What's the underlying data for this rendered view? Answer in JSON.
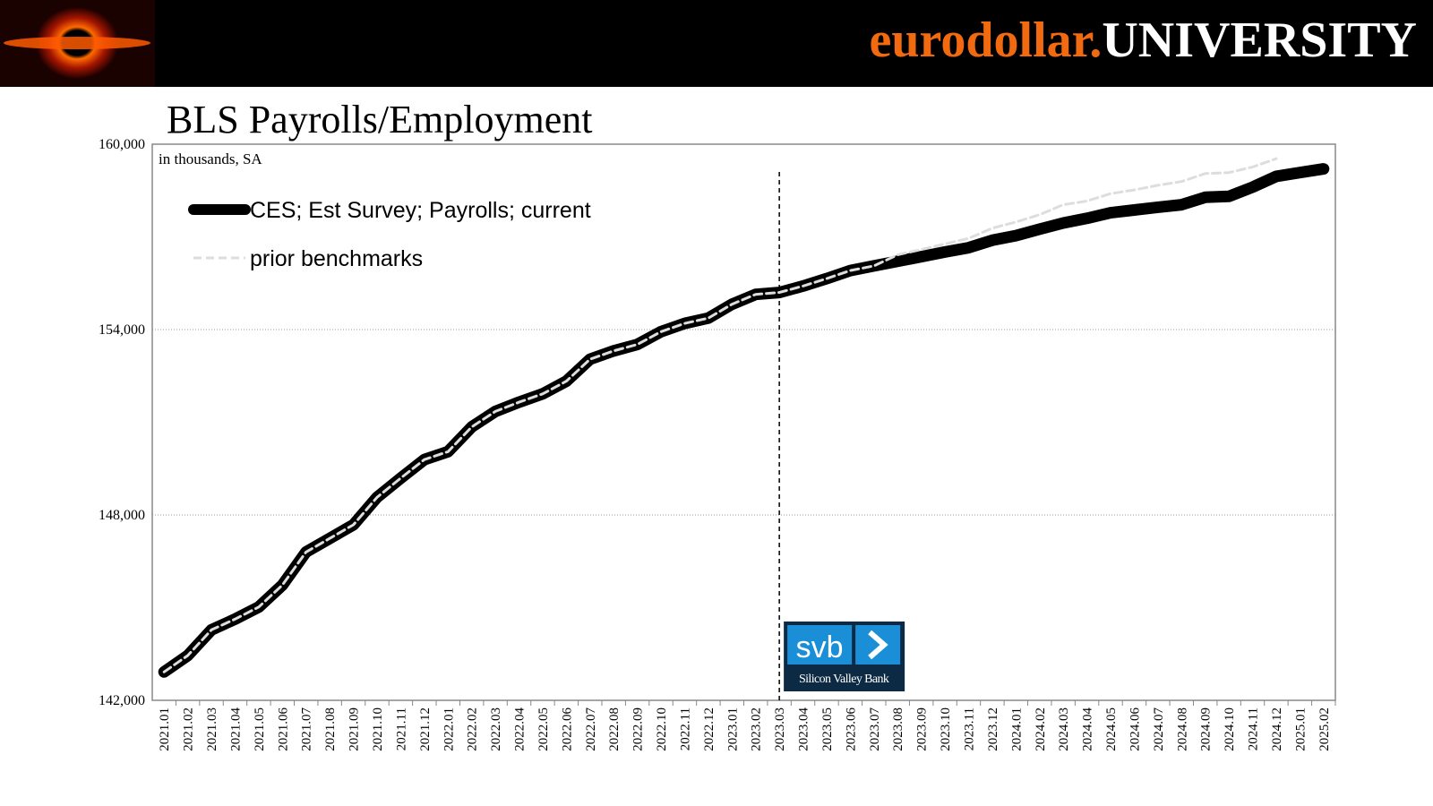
{
  "header": {
    "brand": "eurodollar.",
    "brand_suffix": "UNIVERSITY"
  },
  "chart_data": {
    "type": "line",
    "title": "BLS Payrolls/Employment",
    "subtitle": "in thousands, SA",
    "categories": [
      "2021.01",
      "2021.02",
      "2021.03",
      "2021.04",
      "2021.05",
      "2021.06",
      "2021.07",
      "2021.08",
      "2021.09",
      "2021.10",
      "2021.11",
      "2021.12",
      "2022.01",
      "2022.02",
      "2022.03",
      "2022.04",
      "2022.05",
      "2022.06",
      "2022.07",
      "2022.08",
      "2022.09",
      "2022.10",
      "2022.11",
      "2022.12",
      "2023.01",
      "2023.02",
      "2023.03",
      "2023.04",
      "2023.05",
      "2023.06",
      "2023.07",
      "2023.08",
      "2023.09",
      "2023.10",
      "2023.11",
      "2023.12",
      "2024.01",
      "2024.02",
      "2024.03",
      "2024.04",
      "2024.05",
      "2024.06",
      "2024.07",
      "2024.08",
      "2024.09",
      "2024.10",
      "2024.11",
      "2024.12",
      "2025.01",
      "2025.02"
    ],
    "series": [
      {
        "name": "CES; Est Survey; Payrolls; current",
        "color": "#000000",
        "style": "solid",
        "values": [
          142920,
          143450,
          144280,
          144630,
          145020,
          145730,
          146800,
          147240,
          147680,
          148570,
          149190,
          149790,
          150050,
          150850,
          151350,
          151650,
          151920,
          152330,
          153040,
          153310,
          153520,
          153930,
          154200,
          154370,
          154820,
          155140,
          155200,
          155410,
          155650,
          155910,
          156060,
          156210,
          156360,
          156510,
          156650,
          156890,
          157040,
          157250,
          157450,
          157600,
          157780,
          157870,
          157960,
          158040,
          158280,
          158310,
          158610,
          158960,
          159080,
          159200
        ]
      },
      {
        "name": "prior benchmarks",
        "color": "#dddddd",
        "style": "dashed",
        "values": [
          142920,
          143450,
          144280,
          144630,
          145020,
          145730,
          146800,
          147240,
          147680,
          148570,
          149190,
          149790,
          150050,
          150850,
          151350,
          151650,
          151920,
          152330,
          153040,
          153310,
          153520,
          153930,
          154200,
          154370,
          154820,
          155140,
          155200,
          155410,
          155650,
          155910,
          156060,
          156420,
          156590,
          156770,
          156950,
          157280,
          157480,
          157720,
          158040,
          158160,
          158400,
          158520,
          158670,
          158790,
          159050,
          159080,
          159260,
          159530,
          null,
          null
        ]
      }
    ],
    "ylim": [
      142000,
      160000
    ],
    "yticks": [
      {
        "value": 142000,
        "label": "142,000"
      },
      {
        "value": 148000,
        "label": "148,000"
      },
      {
        "value": 154000,
        "label": "154,000"
      },
      {
        "value": 160000,
        "label": "160,000"
      }
    ],
    "grid": true,
    "annotation": {
      "x": "2023.03",
      "logo": "svb",
      "text": "Silicon Valley Bank"
    }
  }
}
